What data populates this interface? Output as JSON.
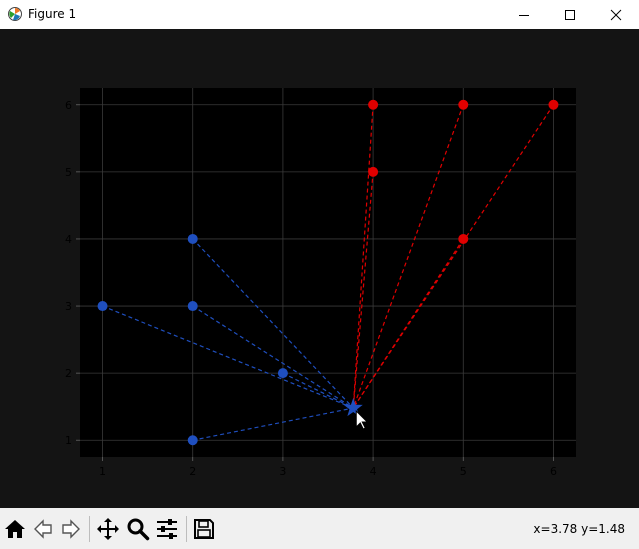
{
  "window": {
    "title": "Figure 1",
    "icons": {
      "app": "matplotlib-icon",
      "minimize": "minimize-icon",
      "maximize": "maximize-icon",
      "close": "close-icon"
    }
  },
  "toolbar": {
    "buttons": [
      {
        "name": "home-button",
        "icon": "home-icon"
      },
      {
        "name": "back-button",
        "icon": "arrow-left-icon"
      },
      {
        "name": "forward-button",
        "icon": "arrow-right-icon"
      },
      {
        "name": "pan-button",
        "icon": "move-icon"
      },
      {
        "name": "zoom-button",
        "icon": "magnifier-icon"
      },
      {
        "name": "configure-subplots-button",
        "icon": "sliders-icon"
      },
      {
        "name": "save-button",
        "icon": "floppy-disk-icon"
      }
    ],
    "coords_text": "x=3.78 y=1.48"
  },
  "chart_data": {
    "type": "scatter",
    "title": "",
    "xlabel": "",
    "ylabel": "",
    "xlim": [
      0.75,
      6.25
    ],
    "ylim": [
      0.75,
      6.25
    ],
    "xticks": [
      1,
      2,
      3,
      4,
      5,
      6
    ],
    "yticks": [
      1,
      2,
      3,
      4,
      5,
      6
    ],
    "grid": true,
    "background": "#000000",
    "star": {
      "x": 3.78,
      "y": 1.48,
      "color": "#1f4fbf"
    },
    "series": [
      {
        "color": "#1f4fbf",
        "points": [
          {
            "x": 1,
            "y": 3
          },
          {
            "x": 2,
            "y": 4
          },
          {
            "x": 2,
            "y": 3
          },
          {
            "x": 3,
            "y": 2
          },
          {
            "x": 2,
            "y": 1
          }
        ]
      },
      {
        "color": "#e00000",
        "points": [
          {
            "x": 4,
            "y": 6
          },
          {
            "x": 5,
            "y": 6
          },
          {
            "x": 6,
            "y": 6
          },
          {
            "x": 4,
            "y": 5
          },
          {
            "x": 5,
            "y": 4
          }
        ]
      }
    ]
  }
}
